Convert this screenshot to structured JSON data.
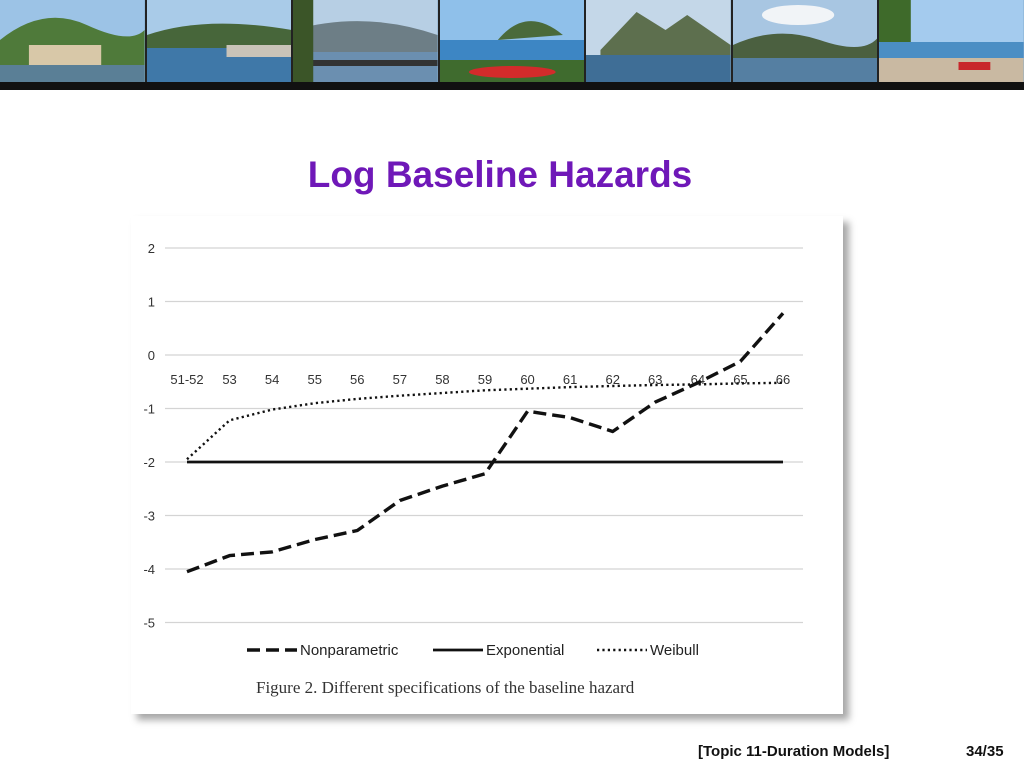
{
  "slide": {
    "title": "Log Baseline Hazards",
    "footer_topic": "[Topic 11-Duration Models]",
    "footer_page": "34/35"
  },
  "colors": {
    "title": "#6f18b8",
    "banner_rule": "#111111",
    "gridline": "#d4d4d4",
    "series": "#111111"
  },
  "figure": {
    "caption": "Figure 2.  Different specifications of the baseline hazard"
  },
  "chart_data": {
    "type": "line",
    "title": "",
    "xlabel": "",
    "ylabel": "",
    "categories": [
      "51-52",
      "53",
      "54",
      "55",
      "56",
      "57",
      "58",
      "59",
      "60",
      "61",
      "62",
      "63",
      "64",
      "65",
      "66"
    ],
    "ylim": [
      -5,
      2
    ],
    "yticks": [
      "2",
      "1",
      "0",
      "-1",
      "-2",
      "-3",
      "-4",
      "-5"
    ],
    "grid": true,
    "legend_position": "bottom",
    "series": [
      {
        "name": "Nonparametric",
        "style": "dashed",
        "values": [
          -4.05,
          -3.75,
          -3.68,
          -3.45,
          -3.28,
          -2.72,
          -2.45,
          -2.22,
          -1.05,
          -1.17,
          -1.43,
          -0.88,
          -0.52,
          -0.12,
          0.78
        ]
      },
      {
        "name": "Exponential",
        "style": "solid",
        "values": [
          -2.0,
          -2.0,
          -2.0,
          -2.0,
          -2.0,
          -2.0,
          -2.0,
          -2.0,
          -2.0,
          -2.0,
          -2.0,
          -2.0,
          -2.0,
          -2.0,
          -2.0
        ]
      },
      {
        "name": "Weibull",
        "style": "dotted",
        "values": [
          -1.95,
          -1.22,
          -1.02,
          -0.9,
          -0.82,
          -0.76,
          -0.71,
          -0.66,
          -0.63,
          -0.6,
          -0.58,
          -0.56,
          -0.55,
          -0.53,
          -0.52
        ]
      }
    ]
  }
}
